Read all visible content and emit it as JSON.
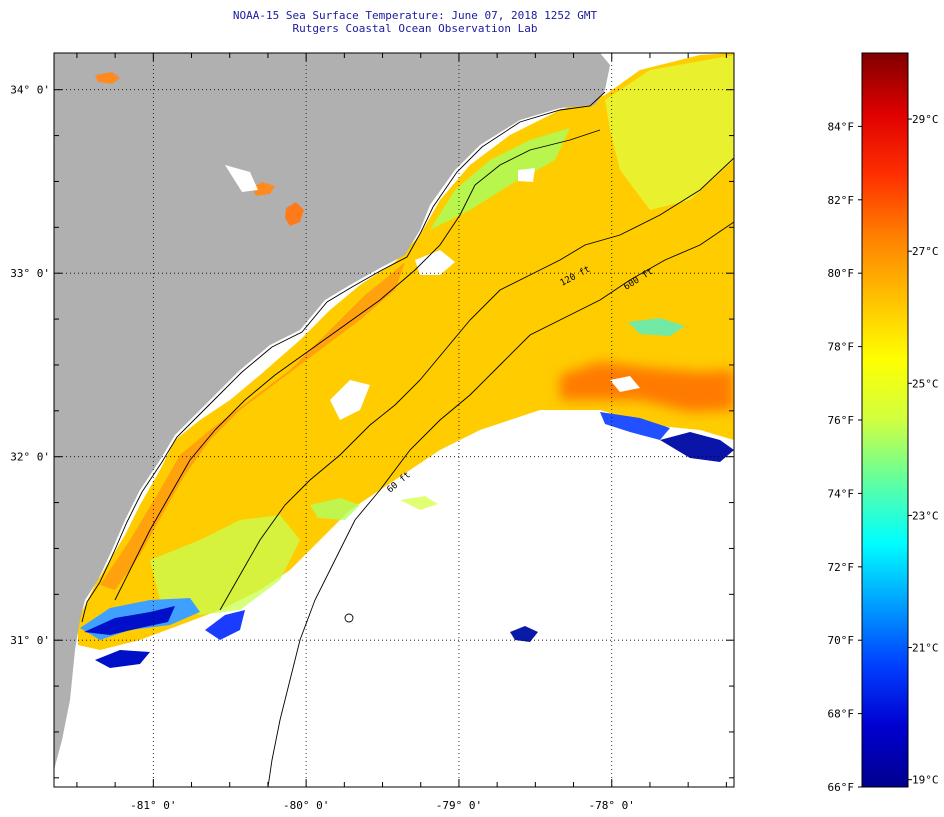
{
  "title": "NOAA-15 Sea Surface Temperature:  June 07, 2018 1252 GMT",
  "subtitle": "Rutgers Coastal Ocean Observation Lab",
  "map": {
    "lon_range": [
      -81.65,
      -77.2
    ],
    "lat_range": [
      30.2,
      34.2
    ],
    "lat_ticks": [
      {
        "value": 34,
        "label": "34° 0'"
      },
      {
        "value": 33,
        "label": "33° 0'"
      },
      {
        "value": 32,
        "label": "32° 0'"
      },
      {
        "value": 31,
        "label": "31° 0'"
      }
    ],
    "lon_ticks": [
      {
        "value": -81,
        "label": "-81° 0'"
      },
      {
        "value": -80,
        "label": "-80° 0'"
      },
      {
        "value": -79,
        "label": "-79° 0'"
      },
      {
        "value": -78,
        "label": "-78° 0'"
      }
    ],
    "land_color": "#b0b0b0",
    "no_data_color": "#ffffff",
    "contour_labels": [
      "120 ft",
      "600 ft",
      "60 ft"
    ]
  },
  "colorbar": {
    "min_f": 66,
    "max_f": 86,
    "colors": [
      "#00008f",
      "#0000d0",
      "#0040ff",
      "#00a0ff",
      "#00ffff",
      "#60ff9f",
      "#d0ff40",
      "#ffff00",
      "#ffc000",
      "#ff8000",
      "#ff3000",
      "#e00000",
      "#800000"
    ],
    "f_ticks": [
      {
        "value": 84,
        "label": "84°F"
      },
      {
        "value": 82,
        "label": "82°F"
      },
      {
        "value": 80,
        "label": "80°F"
      },
      {
        "value": 78,
        "label": "78°F"
      },
      {
        "value": 76,
        "label": "76°F"
      },
      {
        "value": 74,
        "label": "74°F"
      },
      {
        "value": 72,
        "label": "72°F"
      },
      {
        "value": 70,
        "label": "70°F"
      },
      {
        "value": 68,
        "label": "68°F"
      },
      {
        "value": 66,
        "label": "66°F"
      }
    ],
    "c_ticks": [
      {
        "value": 29,
        "label": "29°C"
      },
      {
        "value": 27,
        "label": "27°C"
      },
      {
        "value": 25,
        "label": "25°C"
      },
      {
        "value": 23,
        "label": "23°C"
      },
      {
        "value": 21,
        "label": "21°C"
      },
      {
        "value": 19,
        "label": "19°C"
      }
    ]
  }
}
